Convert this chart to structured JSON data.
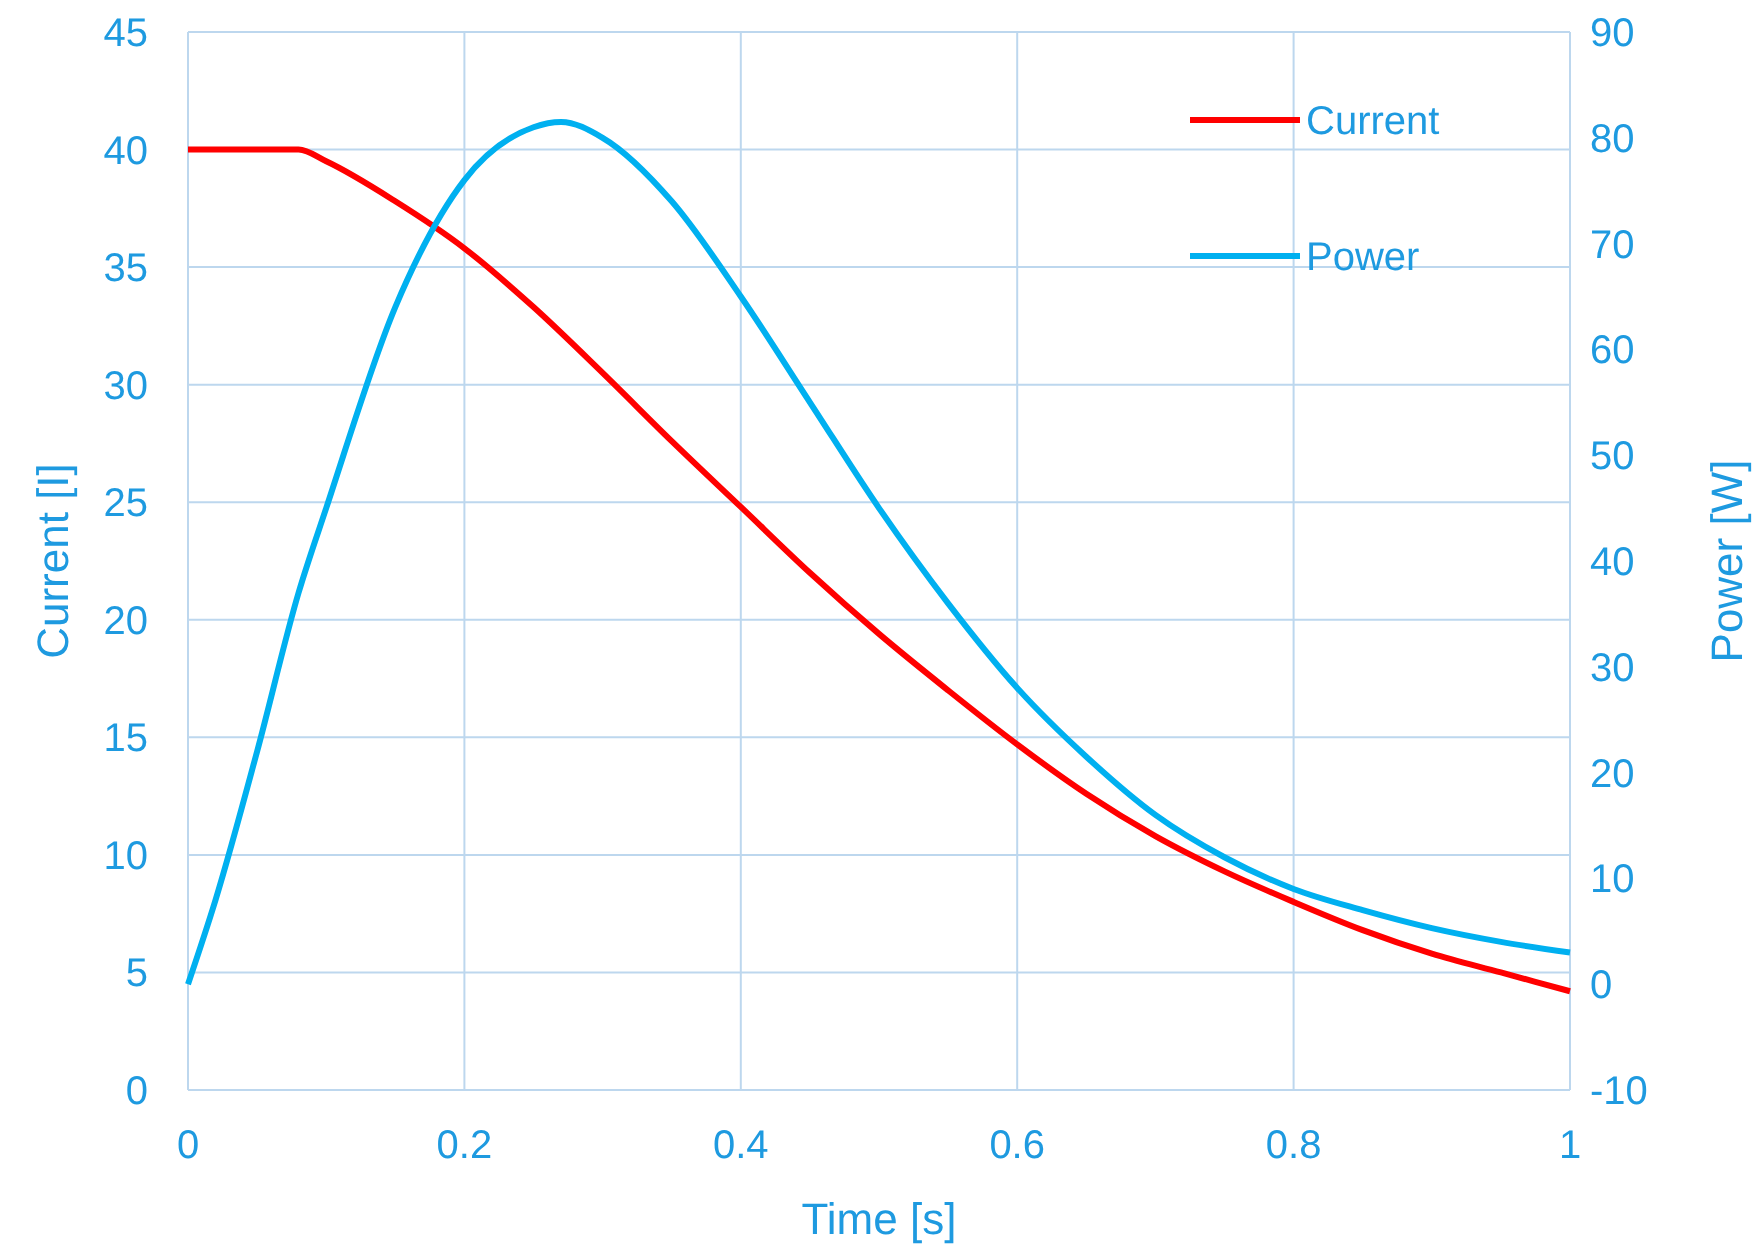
{
  "chart_data": {
    "type": "line",
    "xlabel": "Time [s]",
    "ylabel": "Current [I]",
    "y2label": "Power [W]",
    "xlim": [
      0,
      1
    ],
    "xticks": [
      0,
      0.2,
      0.4,
      0.6,
      0.8,
      1
    ],
    "ylim": [
      0,
      45
    ],
    "yticks": [
      0,
      5,
      10,
      15,
      20,
      25,
      30,
      35,
      40,
      45
    ],
    "y2lim": [
      -10,
      90
    ],
    "y2ticks": [
      -10,
      0,
      10,
      20,
      30,
      40,
      50,
      60,
      70,
      80,
      90
    ],
    "grid": true,
    "legend": "top right",
    "marker": "none",
    "line_style": "solid",
    "series": [
      {
        "name": "Current",
        "color": "#ff0000",
        "x": [
          0,
          0.08,
          0.1,
          0.15,
          0.2,
          0.25,
          0.3,
          0.35,
          0.4,
          0.45,
          0.5,
          0.55,
          0.6,
          0.65,
          0.7,
          0.75,
          0.8,
          0.85,
          0.9,
          0.95,
          1
        ],
        "values": [
          40,
          40,
          39.5,
          37.8,
          35.8,
          33.3,
          30.5,
          27.6,
          24.8,
          22,
          19.4,
          17,
          14.7,
          12.6,
          10.8,
          9.3,
          8,
          6.8,
          5.8,
          5,
          4.2
        ]
      },
      {
        "name": "Power",
        "color": "#00b0f0",
        "axis": "y2",
        "x": [
          0,
          0.02,
          0.05,
          0.08,
          0.1,
          0.15,
          0.2,
          0.25,
          0.27,
          0.3,
          0.35,
          0.4,
          0.45,
          0.5,
          0.55,
          0.6,
          0.65,
          0.7,
          0.75,
          0.8,
          0.85,
          0.9,
          0.95,
          1
        ],
        "values": [
          0,
          8,
          22,
          37,
          45,
          64,
          76,
          81,
          81.5,
          80,
          74,
          65,
          55,
          45,
          36,
          28,
          21.5,
          16,
          12,
          9,
          7,
          5.3,
          4,
          3
        ]
      }
    ]
  }
}
